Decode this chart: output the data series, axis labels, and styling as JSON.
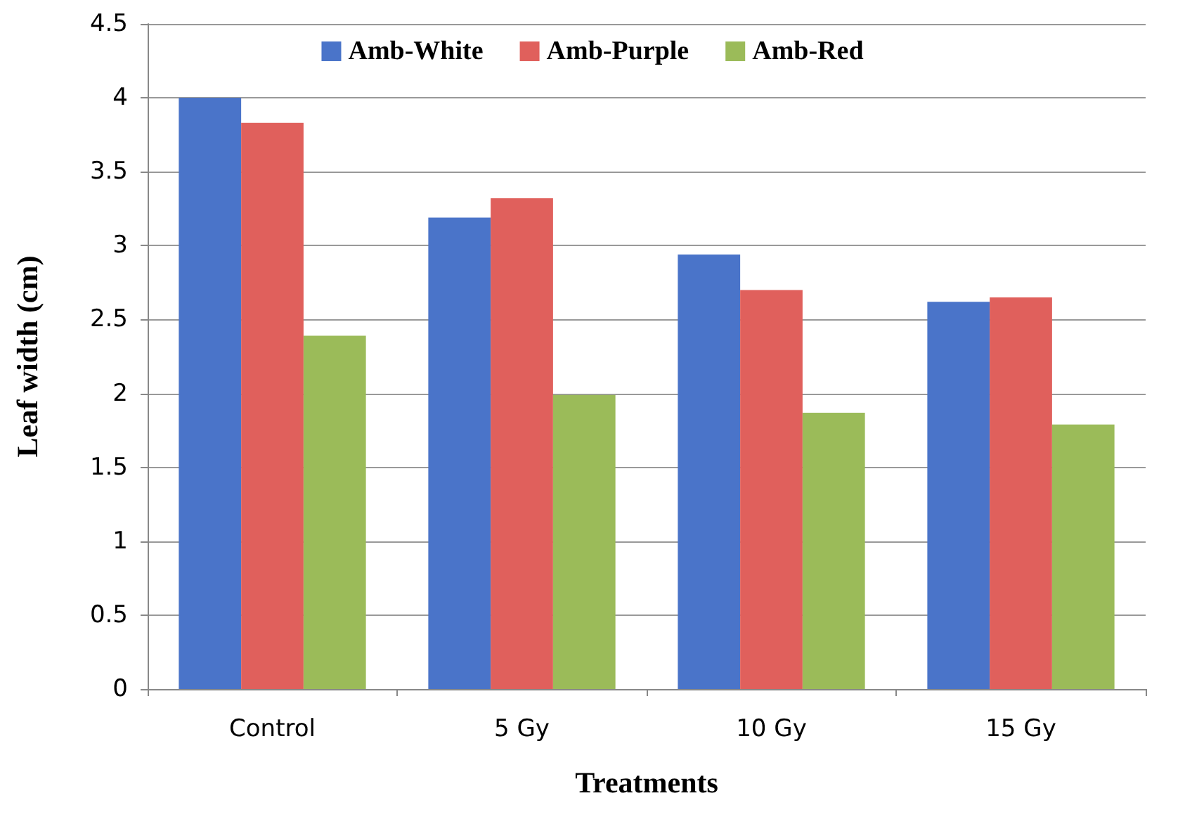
{
  "chart_data": {
    "type": "bar",
    "xlabel": "Treatments",
    "ylabel": "Leaf width (cm)",
    "categories": [
      "Control",
      "5 Gy",
      "10 Gy",
      "15 Gy"
    ],
    "series": [
      {
        "name": "Amb-White",
        "color": "#4a74c9",
        "values": [
          4.0,
          3.19,
          2.94,
          2.62
        ]
      },
      {
        "name": "Amb-Purple",
        "color": "#e0605c",
        "values": [
          3.83,
          3.32,
          2.7,
          2.65
        ]
      },
      {
        "name": "Amb-Red",
        "color": "#9bbb59",
        "values": [
          2.39,
          1.99,
          1.87,
          1.79
        ]
      }
    ],
    "ylim": [
      0,
      4.5
    ],
    "yticks": [
      0,
      0.5,
      1,
      1.5,
      2,
      2.5,
      3,
      3.5,
      4,
      4.5
    ],
    "grid": "y",
    "legend": "top"
  }
}
